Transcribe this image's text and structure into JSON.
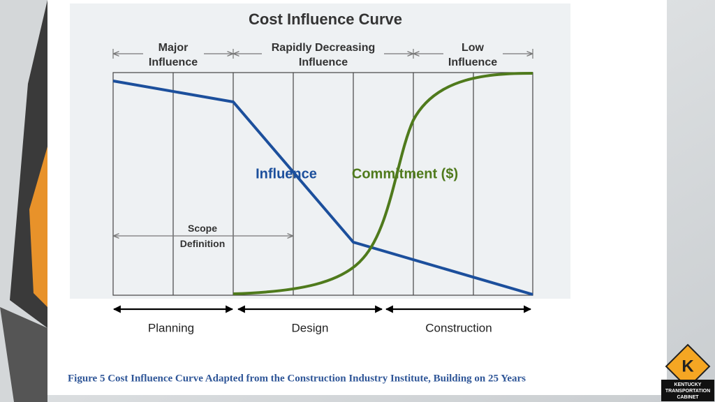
{
  "figure": {
    "title": "Cost Influence Curve",
    "phases_top": [
      [
        "Major",
        "Influence"
      ],
      [
        "Rapidly Decreasing",
        "Influence"
      ],
      [
        "Low",
        "Influence"
      ]
    ],
    "curve_labels": {
      "influence": "Influence",
      "commitment": "Commitment ($)"
    },
    "scope": [
      "Scope",
      "Definition"
    ],
    "phases_bottom": [
      "Planning",
      "Design",
      "Construction"
    ]
  },
  "caption": "Figure 5 Cost Influence Curve Adapted from the Construction Industry Institute, Building on 25 Years",
  "logo": {
    "letter": "K",
    "text": [
      "KENTUCKY",
      "TRANSPORTATION",
      "CABINET"
    ]
  }
}
